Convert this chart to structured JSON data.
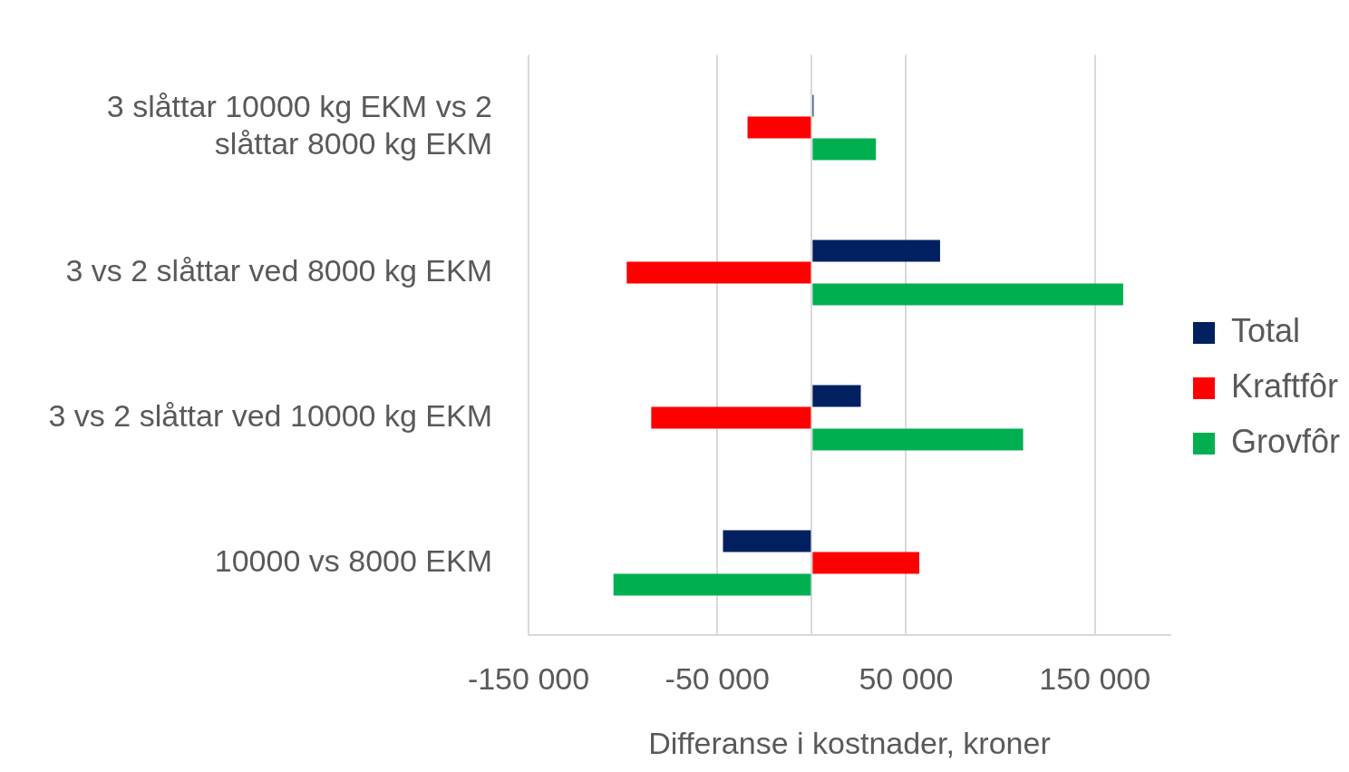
{
  "chart_data": {
    "type": "bar",
    "orientation": "horizontal",
    "xlabel": "Differanse i kostnader, kroner",
    "categories": [
      "3 slåttar 10000 kg EKM vs 2 slåttar 8000 kg EKM",
      "3 vs 2 slåttar ved 8000 kg EKM",
      "3 vs 2 slåttar ved 10000 kg EKM",
      "10000 vs 8000 EKM"
    ],
    "series": [
      {
        "name": "Total",
        "color": "#002060",
        "values": [
          1000,
          68000,
          26000,
          -47000
        ]
      },
      {
        "name": "Kraftfôr",
        "color": "#ff0000",
        "values": [
          -34000,
          -98000,
          -85000,
          57000
        ]
      },
      {
        "name": "Grovfôr",
        "color": "#00b050",
        "values": [
          34000,
          165000,
          112000,
          -105000
        ]
      }
    ],
    "xlim": [
      -150000,
      190000
    ],
    "xticks": [
      {
        "value": -150000,
        "label": "-150 000"
      },
      {
        "value": -50000,
        "label": "-50 000"
      },
      {
        "value": 0,
        "label": null
      },
      {
        "value": 50000,
        "label": "50 000"
      },
      {
        "value": 150000,
        "label": "150 000"
      }
    ],
    "grid": "x",
    "legend": "right"
  }
}
